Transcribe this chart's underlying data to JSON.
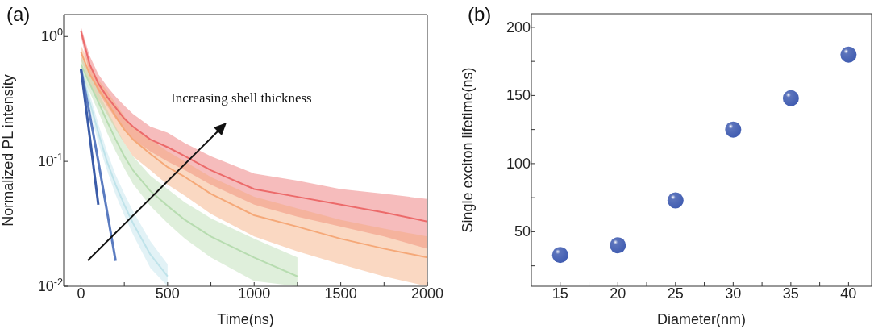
{
  "chart_data": [
    {
      "type": "line",
      "title": "(a)",
      "xlabel": "Time(ns)",
      "ylabel": "Normalized PL intensity",
      "log": "y",
      "marker": "none",
      "annotations": [
        "Increasing shell thickness"
      ],
      "x": [
        0,
        50,
        100,
        150,
        200,
        250,
        300,
        400,
        500,
        600,
        750,
        1000,
        1250,
        1500,
        1750,
        2000
      ],
      "series": [
        {
          "color": "#ec6a6a",
          "values": [
            1.1,
            0.6,
            0.42,
            0.33,
            0.27,
            0.22,
            0.19,
            0.15,
            0.13,
            0.11,
            0.085,
            0.06,
            0.052,
            0.045,
            0.039,
            0.033
          ],
          "lower": [
            1.0,
            0.5,
            0.36,
            0.28,
            0.22,
            0.18,
            0.15,
            0.12,
            0.1,
            0.085,
            0.065,
            0.045,
            0.036,
            0.03,
            0.025,
            0.02
          ],
          "upper": [
            1.2,
            0.7,
            0.5,
            0.4,
            0.33,
            0.28,
            0.24,
            0.19,
            0.17,
            0.14,
            0.11,
            0.08,
            0.07,
            0.06,
            0.055,
            0.05
          ]
        },
        {
          "color": "#f5a878",
          "values": [
            0.75,
            0.5,
            0.38,
            0.3,
            0.23,
            0.18,
            0.15,
            0.115,
            0.09,
            0.075,
            0.055,
            0.037,
            0.03,
            0.024,
            0.02,
            0.017
          ],
          "lower": [
            0.65,
            0.42,
            0.31,
            0.24,
            0.18,
            0.14,
            0.11,
            0.085,
            0.065,
            0.053,
            0.038,
            0.025,
            0.019,
            0.015,
            0.012,
            0.01
          ],
          "upper": [
            0.85,
            0.6,
            0.45,
            0.37,
            0.29,
            0.23,
            0.19,
            0.15,
            0.12,
            0.1,
            0.075,
            0.052,
            0.042,
            0.034,
            0.029,
            0.025
          ]
        },
        {
          "color": "#b7dcb0",
          "values": [
            0.6,
            0.42,
            0.3,
            0.21,
            0.15,
            0.11,
            0.085,
            0.058,
            0.044,
            0.034,
            0.025,
            0.017,
            0.012,
            null,
            null,
            null
          ],
          "lower": [
            0.5,
            0.36,
            0.25,
            0.17,
            0.12,
            0.088,
            0.066,
            0.044,
            0.032,
            0.024,
            0.017,
            0.011,
            0.01,
            null,
            null,
            null
          ],
          "upper": [
            0.7,
            0.5,
            0.36,
            0.26,
            0.19,
            0.14,
            0.11,
            0.077,
            0.06,
            0.047,
            0.035,
            0.024,
            0.017,
            null,
            null,
            null
          ]
        },
        {
          "color": "#bfe3ea",
          "values": [
            0.55,
            0.3,
            0.17,
            0.1,
            0.065,
            0.045,
            0.032,
            0.018,
            0.012,
            null,
            null,
            null,
            null,
            null,
            null,
            null
          ],
          "lower": [
            0.5,
            0.26,
            0.14,
            0.085,
            0.054,
            0.037,
            0.026,
            0.014,
            0.01,
            null,
            null,
            null,
            null,
            null,
            null,
            null
          ],
          "upper": [
            0.6,
            0.35,
            0.2,
            0.12,
            0.078,
            0.055,
            0.04,
            0.023,
            0.015,
            null,
            null,
            null,
            null,
            null,
            null,
            null
          ]
        },
        {
          "color": "#5a7bc0",
          "values": [
            0.55,
            0.24,
            0.1,
            0.04,
            0.016,
            null,
            null,
            null,
            null,
            null,
            null,
            null,
            null,
            null,
            null,
            null
          ]
        },
        {
          "color": "#3a5ba8",
          "values": [
            0.55,
            0.16,
            0.045,
            null,
            null,
            null,
            null,
            null,
            null,
            null,
            null,
            null,
            null,
            null,
            null,
            null
          ]
        }
      ],
      "xlim": [
        -100,
        2000
      ],
      "xticks": [
        0,
        {
          "value": 250,
          "label": null
        },
        500,
        {
          "value": 750,
          "label": null
        },
        1000,
        {
          "value": 1250,
          "label": null
        },
        1500,
        {
          "value": 1750,
          "label": null
        },
        2000
      ],
      "ylim": [
        0.01,
        1.5
      ],
      "yticks": [
        {
          "value": 0.01,
          "label": "10$^{-2}$"
        },
        {
          "value": 0.1,
          "label": "10$^{-1}$"
        },
        {
          "value": 1,
          "label": "10$^{0}$"
        }
      ]
    },
    {
      "type": "scatter",
      "title": "(b)",
      "xlabel": "Diameter(nm)",
      "ylabel": "Single exciton lifetime(ns)",
      "marker": "circle",
      "x": [
        15,
        20,
        25,
        30,
        35,
        40
      ],
      "series": [
        {
          "color": "#3f5bb0",
          "values": [
            33,
            40,
            73,
            125,
            148,
            180
          ]
        }
      ],
      "xlim": [
        12.5,
        42
      ],
      "xticks": [
        15,
        {
          "value": 17.5,
          "label": null
        },
        20,
        {
          "value": 22.5,
          "label": null
        },
        25,
        {
          "value": 27.5,
          "label": null
        },
        30,
        {
          "value": 32.5,
          "label": null
        },
        35,
        {
          "value": 37.5,
          "label": null
        },
        40
      ],
      "ylim": [
        10,
        210
      ],
      "yticks": [
        {
          "value": 25,
          "label": null
        },
        50,
        {
          "value": 75,
          "label": null
        },
        100,
        {
          "value": 125,
          "label": null
        },
        150,
        {
          "value": 175,
          "label": null
        },
        200
      ]
    }
  ]
}
